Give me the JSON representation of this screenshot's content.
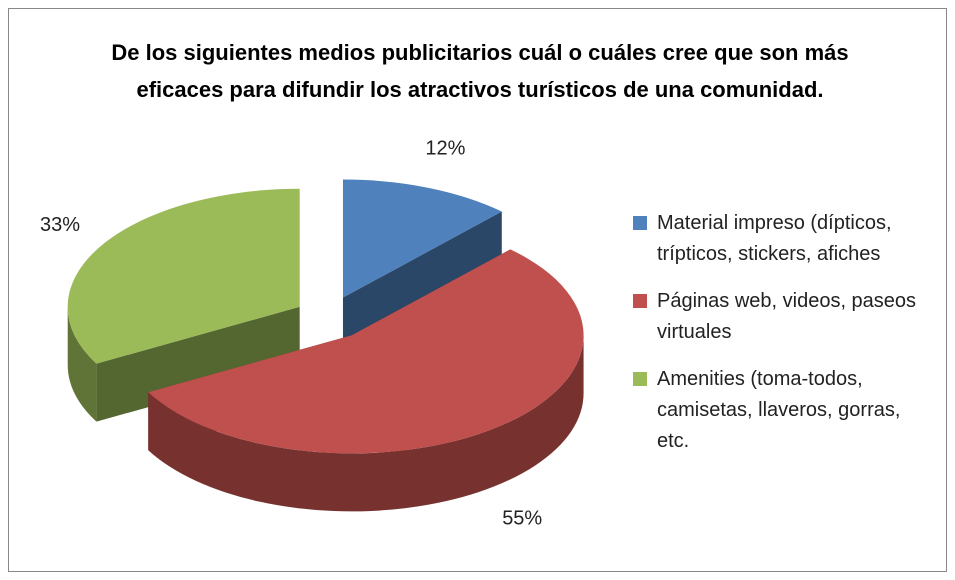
{
  "chart_data": {
    "type": "pie3d",
    "title": "De los siguientes medios publicitarios cuál o cuáles cree que son más eficaces para difundir los atractivos turísticos de una comunidad.",
    "categories": [
      "Material impreso (dípticos, trípticos, stickers, afiches",
      "Páginas web, videos, paseos virtuales",
      "Amenities (toma-todos, camisetas, llaveros, gorras, etc."
    ],
    "values": [
      12,
      55,
      33
    ],
    "value_labels": [
      "12%",
      "55%",
      "33%"
    ],
    "colors": [
      "#4f81bd",
      "#c0504d",
      "#9bbb59"
    ],
    "legend": "right"
  }
}
